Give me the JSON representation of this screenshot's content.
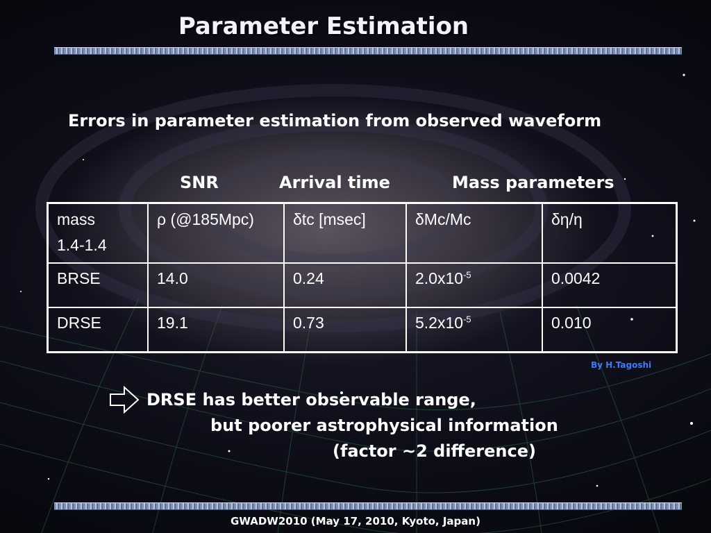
{
  "slide": {
    "title": "Parameter Estimation",
    "subtitle": "Errors in parameter estimation from observed waveform",
    "column_groups": {
      "snr": "SNR",
      "arrival_time": "Arrival time",
      "mass_parameters": "Mass parameters"
    },
    "table": {
      "header": {
        "c0_line1": "mass",
        "c0_line2": "1.4-1.4",
        "c1": "ρ (@185Mpc)",
        "c2": "δtc [msec]",
        "c3": "δMc/Mc",
        "c4": "δη/η"
      },
      "rows": [
        {
          "name": "BRSE",
          "rho": "14.0",
          "dtc": "0.24",
          "dmc_mantissa": "2.0x10",
          "dmc_exp": "-5",
          "deta": "0.0042"
        },
        {
          "name": "DRSE",
          "rho": "19.1",
          "dtc": "0.73",
          "dmc_mantissa": "5.2x10",
          "dmc_exp": "-5",
          "deta": "0.010"
        }
      ]
    },
    "credit": "By H.Tagoshi",
    "conclusion": {
      "line1": "DRSE has better observable range,",
      "line2": "but poorer astrophysical information",
      "line3": "(factor ~2 difference)"
    },
    "footer": "GWADW2010  (May 17, 2010, Kyoto, Japan)"
  },
  "icons": {
    "bullet_icon": "outline-right-arrow-icon"
  }
}
